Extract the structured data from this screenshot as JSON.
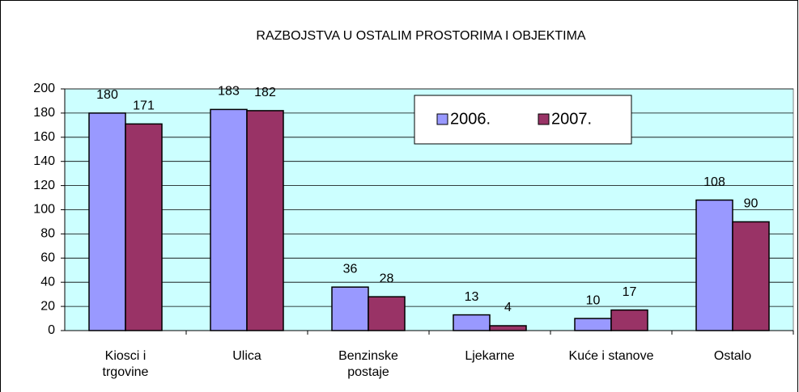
{
  "chart_data": {
    "type": "bar",
    "title": "RAZBOJSTVA U OSTALIM PROSTORIMA I OBJEKTIMA",
    "categories": [
      "Kiosci i\ntrgovine",
      "Ulica",
      "Benzinske\npostaje",
      "Ljekarne",
      "Kuće i stanove",
      "Ostalo"
    ],
    "series": [
      {
        "name": "2006.",
        "color": "#9999ff",
        "values": [
          180,
          183,
          36,
          13,
          10,
          108
        ]
      },
      {
        "name": "2007.",
        "color": "#993366",
        "values": [
          171,
          182,
          28,
          4,
          17,
          90
        ]
      }
    ],
    "ylim": [
      0,
      200
    ],
    "yticks": [
      0,
      20,
      40,
      60,
      80,
      100,
      120,
      140,
      160,
      180,
      200
    ],
    "grid": true,
    "legend": "top"
  }
}
